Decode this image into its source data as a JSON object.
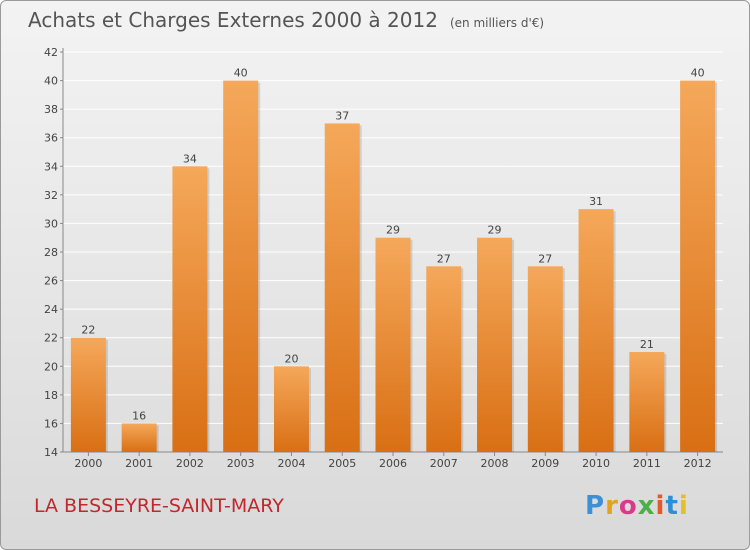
{
  "title": "Achats et Charges Externes 2000 à 2012",
  "unit": "(en milliers d'€)",
  "commune": "LA BESSEYRE-SAINT-MARY",
  "logo": {
    "text": "Proxiti",
    "colors": [
      "#3d8fd6",
      "#e7a21c",
      "#d93b8a",
      "#4ab04a",
      "#e25a2a",
      "#2e8ed8",
      "#e0c12a"
    ]
  },
  "colors": {
    "bar_top": "#f5a85a",
    "bar_bottom": "#d96f14",
    "grid": "#ffffff",
    "axis_text": "#444444",
    "title": "#555555",
    "commune": "#c0282d"
  },
  "chart_data": {
    "type": "bar",
    "title": "Achats et Charges Externes 2000 à 2012",
    "subtitle": "(en milliers d'€)",
    "xlabel": "",
    "ylabel": "",
    "categories": [
      "2000",
      "2001",
      "2002",
      "2003",
      "2004",
      "2005",
      "2006",
      "2007",
      "2008",
      "2009",
      "2010",
      "2011",
      "2012"
    ],
    "values": [
      22,
      16,
      34,
      40,
      20,
      37,
      29,
      27,
      29,
      27,
      31,
      21,
      40
    ],
    "ylim": [
      14,
      42
    ],
    "yticks": [
      14,
      16,
      18,
      20,
      22,
      24,
      26,
      28,
      30,
      32,
      34,
      36,
      38,
      40,
      42
    ],
    "grid": true,
    "legend": "none"
  }
}
